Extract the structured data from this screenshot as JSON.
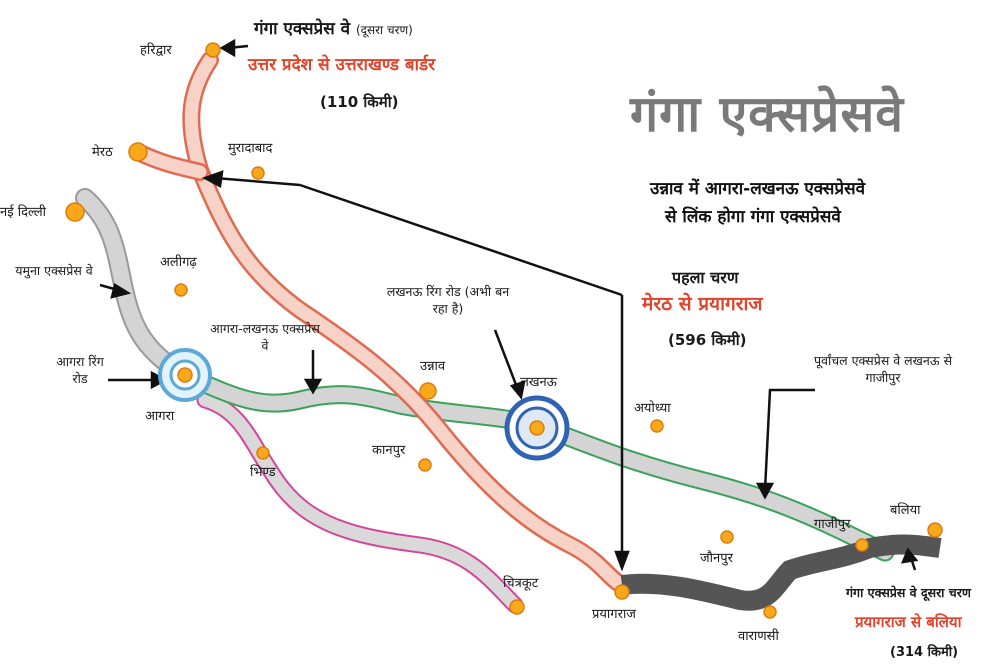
{
  "title": "गंगा एक्सप्रेसवे",
  "subtitle_line1": "उन्नाव में आगरा-लखनऊ एक्सप्रेसवे",
  "subtitle_line2": "से लिंक होगा गंगा एक्सप्रेसवे",
  "phase2_north": {
    "heading": "गंगा एक्सप्रेस वे",
    "heading_suffix": "(दूसरा चरण)",
    "route": "उत्तर प्रदेश से उत्तराखण्ड बार्डर",
    "length": "(110 किमी)"
  },
  "phase1": {
    "heading": "पहला चरण",
    "route": "मेरठ से प्रयागराज",
    "length": "(596 किमी)"
  },
  "phase2_east": {
    "heading": "गंगा एक्सप्रेस वे दूसरा चरण",
    "route": "प्रयागराज से बलिया",
    "length": "(314 किमी)"
  },
  "annotations": {
    "yamuna": "यमुना एक्सप्रेस वे",
    "agra_ring": "आगरा रिंग रोड",
    "agra_lucknow": "आगरा-लखनऊ एक्सप्रेस वे",
    "lucknow_ring": "लखनऊ रिंग रोड (अभी बन रहा है)",
    "purvanchal": "पूर्वांचल एक्सप्रेस वे लखनऊ से गाजीपुर"
  },
  "cities": {
    "haridwar": "हरिद्वार",
    "meerut": "मेरठ",
    "moradabad": "मुरादाबाद",
    "delhi": "नई दिल्ली",
    "aligarh": "अलीगढ़",
    "agra": "आगरा",
    "bhind": "भिण्ड",
    "unnao": "उन्नाव",
    "kanpur": "कानपुर",
    "lucknow": "लखनऊ",
    "ayodhya": "अयोध्या",
    "jaunpur": "जौनपुर",
    "ghazipur": "गाजीपुर",
    "ballia": "बलिया",
    "chitrakoot": "चित्रकूट",
    "prayagraj": "प्रयागराज",
    "varanasi": "वाराणसी"
  },
  "colors": {
    "ganga_phase1": "#f08a72",
    "ganga_phase2_east": "#555555",
    "existing_road": "#cfcfcf",
    "purvanchal_edge": "#3aa35a",
    "bundelkhand_edge": "#d6449a",
    "city_dot": "#f7a81b",
    "ring_blue": "#5aa9d8",
    "accent_red": "#e0442a"
  }
}
